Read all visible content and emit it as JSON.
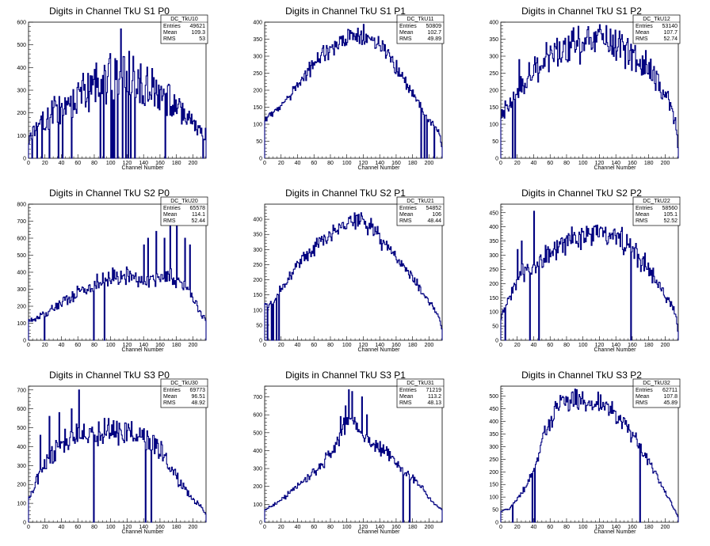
{
  "chart_data": [
    {
      "type": "histogram",
      "title": "Digits in Channel TkU S1 P0",
      "xlabel": "Channel Number",
      "xlim": [
        0,
        216
      ],
      "ylim": [
        0,
        600
      ],
      "xticks": [
        0,
        20,
        40,
        60,
        80,
        100,
        120,
        140,
        160,
        180,
        200
      ],
      "yticks": [
        0,
        100,
        200,
        300,
        400,
        500,
        600
      ],
      "stats": {
        "name": "DC_TkU10",
        "Entries": "49621",
        "Mean": "109.3",
        "RMS": "53"
      },
      "profile": [
        [
          0,
          80
        ],
        [
          15,
          150
        ],
        [
          30,
          200
        ],
        [
          50,
          230
        ],
        [
          70,
          300
        ],
        [
          90,
          340
        ],
        [
          100,
          350
        ],
        [
          110,
          380
        ],
        [
          120,
          370
        ],
        [
          135,
          350
        ],
        [
          150,
          300
        ],
        [
          170,
          260
        ],
        [
          185,
          220
        ],
        [
          200,
          150
        ],
        [
          213,
          100
        ]
      ],
      "noise": 0.3,
      "seed": 11,
      "spikes": [
        [
          112,
          570
        ],
        [
          107,
          430
        ],
        [
          127,
          450
        ],
        [
          98,
          440
        ],
        [
          92,
          410
        ],
        [
          87,
          350
        ]
      ],
      "dips": [
        4,
        10,
        16,
        25,
        36,
        41,
        52,
        87,
        91,
        100,
        102,
        104,
        108,
        114,
        118,
        121,
        124,
        129,
        166,
        212
      ]
    },
    {
      "type": "histogram",
      "title": "Digits in Channel TkU S1 P1",
      "xlabel": "Channel Number",
      "xlim": [
        0,
        216
      ],
      "ylim": [
        0,
        400
      ],
      "xticks": [
        0,
        20,
        40,
        60,
        80,
        100,
        120,
        140,
        160,
        180,
        200
      ],
      "yticks": [
        0,
        50,
        100,
        150,
        200,
        250,
        300,
        350,
        400
      ],
      "stats": {
        "name": "DC_TkU11",
        "Entries": "50809",
        "Mean": "102.7",
        "RMS": "49.89"
      },
      "profile": [
        [
          0,
          110
        ],
        [
          10,
          130
        ],
        [
          30,
          180
        ],
        [
          50,
          250
        ],
        [
          70,
          300
        ],
        [
          90,
          345
        ],
        [
          110,
          365
        ],
        [
          120,
          365
        ],
        [
          140,
          330
        ],
        [
          160,
          270
        ],
        [
          175,
          210
        ],
        [
          190,
          150
        ],
        [
          200,
          110
        ],
        [
          212,
          80
        ],
        [
          216,
          30
        ]
      ],
      "noise": 0.05,
      "seed": 12,
      "spikes": [],
      "dips": [
        190,
        194,
        197,
        206
      ]
    },
    {
      "type": "histogram",
      "title": "Digits in Channel TkU S1 P2",
      "xlabel": "Channel Number",
      "xlim": [
        0,
        216
      ],
      "ylim": [
        0,
        400
      ],
      "xticks": [
        0,
        20,
        40,
        60,
        80,
        100,
        120,
        140,
        160,
        180,
        200
      ],
      "yticks": [
        0,
        50,
        100,
        150,
        200,
        250,
        300,
        350,
        400
      ],
      "stats": {
        "name": "DC_TkU12",
        "Entries": "53140",
        "Mean": "107.7",
        "RMS": "52.74"
      },
      "profile": [
        [
          0,
          130
        ],
        [
          10,
          160
        ],
        [
          30,
          230
        ],
        [
          50,
          280
        ],
        [
          70,
          315
        ],
        [
          90,
          330
        ],
        [
          110,
          350
        ],
        [
          125,
          355
        ],
        [
          140,
          330
        ],
        [
          160,
          300
        ],
        [
          180,
          260
        ],
        [
          195,
          210
        ],
        [
          205,
          170
        ],
        [
          212,
          110
        ],
        [
          214,
          90
        ],
        [
          216,
          20
        ]
      ],
      "noise": 0.14,
      "seed": 13,
      "spikes": [
        [
          60,
          330
        ],
        [
          128,
          390
        ],
        [
          22,
          290
        ]
      ],
      "dips": [
        14,
        17
      ]
    },
    {
      "type": "histogram",
      "title": "Digits in Channel TkU S2 P0",
      "xlabel": "Channel Number",
      "xlim": [
        0,
        216
      ],
      "ylim": [
        0,
        800
      ],
      "xticks": [
        0,
        20,
        40,
        60,
        80,
        100,
        120,
        140,
        160,
        180,
        200
      ],
      "yticks": [
        0,
        100,
        200,
        300,
        400,
        500,
        600,
        700,
        800
      ],
      "stats": {
        "name": "DC_TkU20",
        "Entries": "65578",
        "Mean": "114.1",
        "RMS": "52.44"
      },
      "profile": [
        [
          0,
          110
        ],
        [
          20,
          150
        ],
        [
          40,
          220
        ],
        [
          60,
          280
        ],
        [
          80,
          330
        ],
        [
          100,
          370
        ],
        [
          120,
          380
        ],
        [
          135,
          350
        ],
        [
          150,
          360
        ],
        [
          170,
          380
        ],
        [
          185,
          350
        ],
        [
          200,
          250
        ],
        [
          210,
          150
        ],
        [
          216,
          130
        ]
      ],
      "noise": 0.12,
      "seed": 21,
      "spikes": [
        [
          172,
          760
        ],
        [
          140,
          560
        ],
        [
          155,
          640
        ],
        [
          180,
          700
        ],
        [
          190,
          600
        ],
        [
          165,
          600
        ],
        [
          145,
          600
        ],
        [
          196,
          560
        ]
      ],
      "dips": [
        19,
        79,
        92
      ]
    },
    {
      "type": "histogram",
      "title": "Digits in Channel TkU S2 P1",
      "xlabel": "Channel Number",
      "xlim": [
        0,
        216
      ],
      "ylim": [
        0,
        450
      ],
      "xticks": [
        0,
        20,
        40,
        60,
        80,
        100,
        120,
        140,
        160,
        180,
        200
      ],
      "yticks": [
        0,
        50,
        100,
        150,
        200,
        250,
        300,
        350,
        400
      ],
      "stats": {
        "name": "DC_TkU21",
        "Entries": "54852",
        "Mean": "106",
        "RMS": "48.44"
      },
      "profile": [
        [
          0,
          110
        ],
        [
          10,
          120
        ],
        [
          20,
          170
        ],
        [
          40,
          250
        ],
        [
          60,
          300
        ],
        [
          80,
          350
        ],
        [
          100,
          385
        ],
        [
          115,
          395
        ],
        [
          130,
          370
        ],
        [
          150,
          310
        ],
        [
          170,
          240
        ],
        [
          190,
          170
        ],
        [
          205,
          110
        ],
        [
          213,
          70
        ],
        [
          216,
          30
        ]
      ],
      "noise": 0.05,
      "seed": 22,
      "spikes": [],
      "dips": [
        3,
        8,
        10,
        14,
        17
      ]
    },
    {
      "type": "histogram",
      "title": "Digits in Channel TkU S2 P2",
      "xlabel": "Channel Number",
      "xlim": [
        0,
        216
      ],
      "ylim": [
        0,
        480
      ],
      "xticks": [
        0,
        20,
        40,
        60,
        80,
        100,
        120,
        140,
        160,
        180,
        200
      ],
      "yticks": [
        0,
        50,
        100,
        150,
        200,
        250,
        300,
        350,
        400,
        450
      ],
      "stats": {
        "name": "DC_TkU22",
        "Entries": "58560",
        "Mean": "105.1",
        "RMS": "52.52"
      },
      "profile": [
        [
          0,
          80
        ],
        [
          10,
          150
        ],
        [
          25,
          230
        ],
        [
          40,
          260
        ],
        [
          60,
          310
        ],
        [
          80,
          345
        ],
        [
          100,
          365
        ],
        [
          120,
          390
        ],
        [
          140,
          360
        ],
        [
          160,
          320
        ],
        [
          180,
          250
        ],
        [
          195,
          180
        ],
        [
          210,
          120
        ],
        [
          214,
          70
        ],
        [
          216,
          20
        ]
      ],
      "noise": 0.1,
      "seed": 23,
      "spikes": [
        [
          40,
          455
        ],
        [
          25,
          350
        ],
        [
          20,
          320
        ]
      ],
      "dips": [
        5,
        35,
        46,
        158
      ]
    },
    {
      "type": "histogram",
      "title": "Digits in Channel TkU S3 P0",
      "xlabel": "Channel Number",
      "xlim": [
        0,
        216
      ],
      "ylim": [
        0,
        720
      ],
      "xticks": [
        0,
        20,
        40,
        60,
        80,
        100,
        120,
        140,
        160,
        180,
        200
      ],
      "yticks": [
        0,
        100,
        200,
        300,
        400,
        500,
        600,
        700
      ],
      "stats": {
        "name": "DC_TkU30",
        "Entries": "69773",
        "Mean": "96.51",
        "RMS": "48.92"
      },
      "profile": [
        [
          0,
          120
        ],
        [
          10,
          220
        ],
        [
          20,
          300
        ],
        [
          40,
          420
        ],
        [
          60,
          450
        ],
        [
          80,
          470
        ],
        [
          100,
          480
        ],
        [
          120,
          480
        ],
        [
          140,
          450
        ],
        [
          160,
          380
        ],
        [
          170,
          310
        ],
        [
          185,
          210
        ],
        [
          200,
          120
        ],
        [
          212,
          70
        ],
        [
          216,
          40
        ]
      ],
      "noise": 0.12,
      "seed": 31,
      "spikes": [
        [
          61,
          700
        ],
        [
          37,
          580
        ],
        [
          52,
          600
        ],
        [
          14,
          460
        ],
        [
          25,
          560
        ]
      ],
      "dips": [
        79,
        142,
        149
      ]
    },
    {
      "type": "histogram",
      "title": "Digits in Channel TkU S3 P1",
      "xlabel": "Channel Number",
      "xlim": [
        0,
        216
      ],
      "ylim": [
        0,
        760
      ],
      "xticks": [
        0,
        20,
        40,
        60,
        80,
        100,
        120,
        140,
        160,
        180,
        200
      ],
      "yticks": [
        0,
        100,
        200,
        300,
        400,
        500,
        600,
        700
      ],
      "stats": {
        "name": "DC_TkU31",
        "Entries": "71219",
        "Mean": "113.2",
        "RMS": "48.13"
      },
      "profile": [
        [
          0,
          70
        ],
        [
          20,
          120
        ],
        [
          40,
          200
        ],
        [
          60,
          280
        ],
        [
          80,
          380
        ],
        [
          95,
          520
        ],
        [
          105,
          600
        ],
        [
          115,
          500
        ],
        [
          130,
          440
        ],
        [
          150,
          380
        ],
        [
          170,
          290
        ],
        [
          190,
          200
        ],
        [
          205,
          110
        ],
        [
          216,
          70
        ]
      ],
      "noise": 0.06,
      "seed": 32,
      "spikes": [
        [
          102,
          740
        ],
        [
          106,
          730
        ],
        [
          98,
          650
        ],
        [
          118,
          700
        ],
        [
          92,
          590
        ],
        [
          124,
          600
        ]
      ],
      "dips": [
        168,
        176
      ]
    },
    {
      "type": "histogram",
      "title": "Digits in Channel TkU S3 P2",
      "xlabel": "Channel Number",
      "xlim": [
        0,
        216
      ],
      "ylim": [
        0,
        540
      ],
      "xticks": [
        0,
        20,
        40,
        60,
        80,
        100,
        120,
        140,
        160,
        180,
        200
      ],
      "yticks": [
        0,
        50,
        100,
        150,
        200,
        250,
        300,
        350,
        400,
        450,
        500
      ],
      "stats": {
        "name": "DC_TkU32",
        "Entries": "62711",
        "Mean": "107.8",
        "RMS": "45.89"
      },
      "profile": [
        [
          0,
          40
        ],
        [
          10,
          55
        ],
        [
          20,
          90
        ],
        [
          30,
          140
        ],
        [
          40,
          200
        ],
        [
          50,
          330
        ],
        [
          60,
          400
        ],
        [
          70,
          460
        ],
        [
          80,
          480
        ],
        [
          100,
          485
        ],
        [
          120,
          470
        ],
        [
          140,
          430
        ],
        [
          160,
          350
        ],
        [
          180,
          240
        ],
        [
          200,
          120
        ],
        [
          210,
          60
        ],
        [
          216,
          20
        ]
      ],
      "noise": 0.05,
      "seed": 33,
      "spikes": [
        [
          86,
          515
        ]
      ],
      "dips": [
        14,
        38,
        41,
        169
      ]
    }
  ]
}
